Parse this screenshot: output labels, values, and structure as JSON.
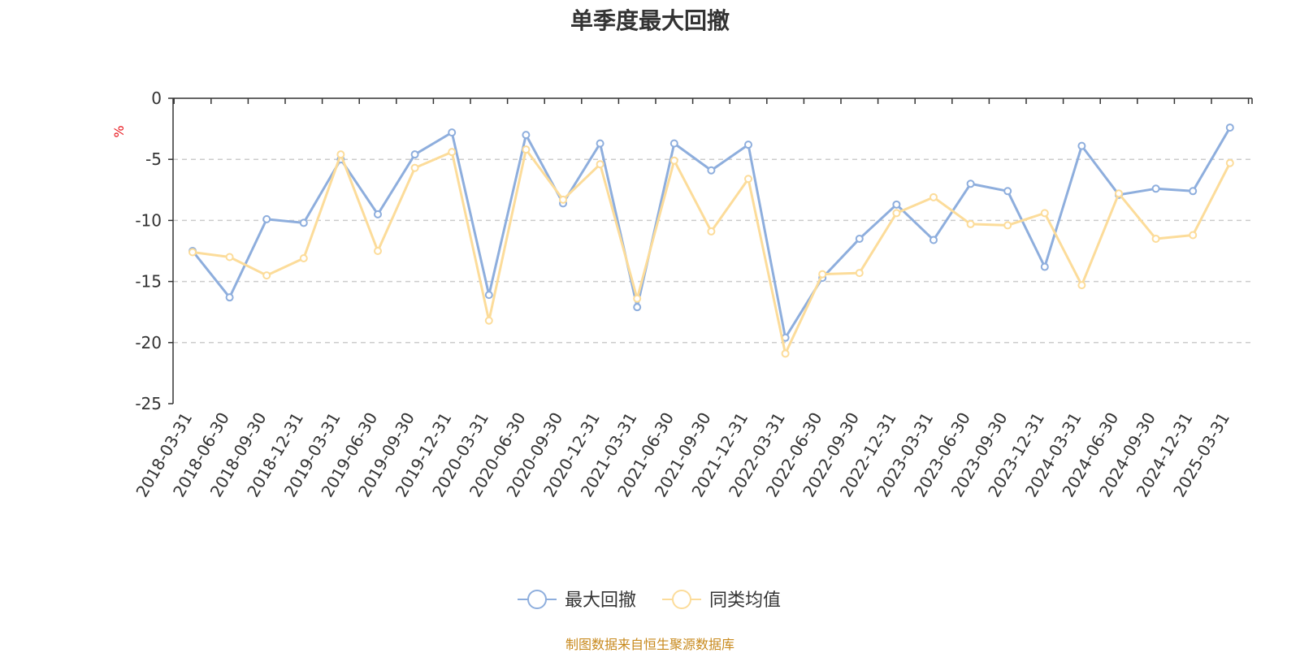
{
  "chart_data": {
    "type": "line",
    "title": "单季度最大回撤",
    "ylabel": "%",
    "ylim": [
      -25,
      0
    ],
    "yticks": [
      0,
      -5,
      -10,
      -15,
      -20,
      -25
    ],
    "grid": true,
    "legend_position": "bottom-center",
    "categories": [
      "2018-03-31",
      "2018-06-30",
      "2018-09-30",
      "2018-12-31",
      "2019-03-31",
      "2019-06-30",
      "2019-09-30",
      "2019-12-31",
      "2020-03-31",
      "2020-06-30",
      "2020-09-30",
      "2020-12-31",
      "2021-03-31",
      "2021-06-30",
      "2021-09-30",
      "2021-12-31",
      "2022-03-31",
      "2022-06-30",
      "2022-09-30",
      "2022-12-31",
      "2023-03-31",
      "2023-06-30",
      "2023-09-30",
      "2023-12-31",
      "2024-03-31",
      "2024-06-30",
      "2024-09-30",
      "2024-12-31",
      "2025-03-31"
    ],
    "series": [
      {
        "name": "最大回撤",
        "color": "#8eaedd",
        "values": [
          -12.5,
          -16.3,
          -9.9,
          -10.2,
          -5.0,
          -9.5,
          -4.6,
          -2.8,
          -16.1,
          -3.0,
          -8.6,
          -3.7,
          -17.1,
          -3.7,
          -5.9,
          -3.8,
          -19.6,
          -14.7,
          -11.5,
          -8.7,
          -11.6,
          -7.0,
          -7.6,
          -13.8,
          -3.9,
          -7.9,
          -7.4,
          -7.6,
          -2.4
        ]
      },
      {
        "name": "同类均值",
        "color": "#fcdc9a",
        "values": [
          -12.6,
          -13.0,
          -14.5,
          -13.1,
          -4.6,
          -12.5,
          -5.7,
          -4.4,
          -18.2,
          -4.2,
          -8.3,
          -5.4,
          -16.4,
          -5.1,
          -10.9,
          -6.6,
          -20.9,
          -14.4,
          -14.3,
          -9.4,
          -8.1,
          -10.3,
          -10.4,
          -9.4,
          -15.3,
          -7.8,
          -11.5,
          -11.2,
          -5.3
        ]
      }
    ]
  },
  "source_note": "制图数据来自恒生聚源数据库"
}
